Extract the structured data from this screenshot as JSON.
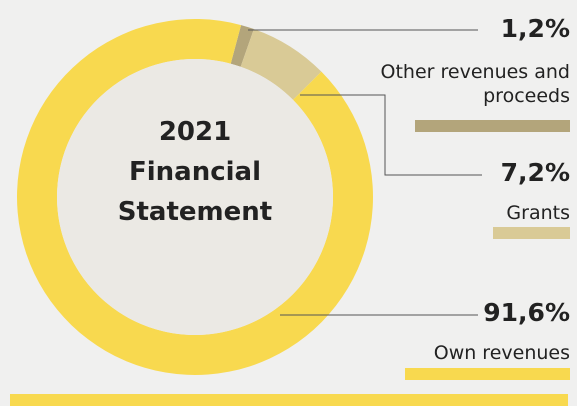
{
  "chart_data": {
    "type": "donut",
    "title": "2021 Financial Statement",
    "categories": [
      "Other revenues and proceeds",
      "Grants",
      "Own revenues"
    ],
    "values": [
      1.2,
      7.2,
      91.6
    ],
    "value_labels": [
      "1,2%",
      "7,2%",
      "91,6%"
    ],
    "colors": [
      "#b3a57b",
      "#d9ca96",
      "#f8d94f"
    ]
  }
}
